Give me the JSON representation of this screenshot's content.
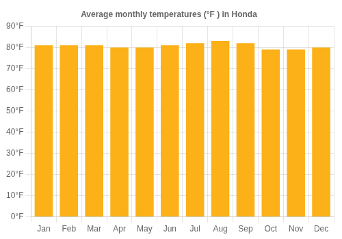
{
  "chart_data": {
    "type": "bar",
    "title": "Average monthly temperatures (°F ) in Honda",
    "categories": [
      "Jan",
      "Feb",
      "Mar",
      "Apr",
      "May",
      "Jun",
      "Jul",
      "Aug",
      "Sep",
      "Oct",
      "Nov",
      "Dec"
    ],
    "values": [
      81,
      81,
      81,
      80,
      80,
      81,
      82,
      83,
      82,
      79,
      79,
      80
    ],
    "color": "#FBB117",
    "ylim": [
      0,
      90
    ],
    "yticks": [
      {
        "value": 0,
        "label": "0°F"
      },
      {
        "value": 10,
        "label": "10°F"
      },
      {
        "value": 20,
        "label": "20°F"
      },
      {
        "value": 30,
        "label": "30°F"
      },
      {
        "value": 40,
        "label": "40°F"
      },
      {
        "value": 50,
        "label": "50°F"
      },
      {
        "value": 60,
        "label": "60°F"
      },
      {
        "value": 70,
        "label": "70°F"
      },
      {
        "value": 80,
        "label": "80°F"
      },
      {
        "value": 90,
        "label": "90°F"
      }
    ],
    "grid": true
  }
}
